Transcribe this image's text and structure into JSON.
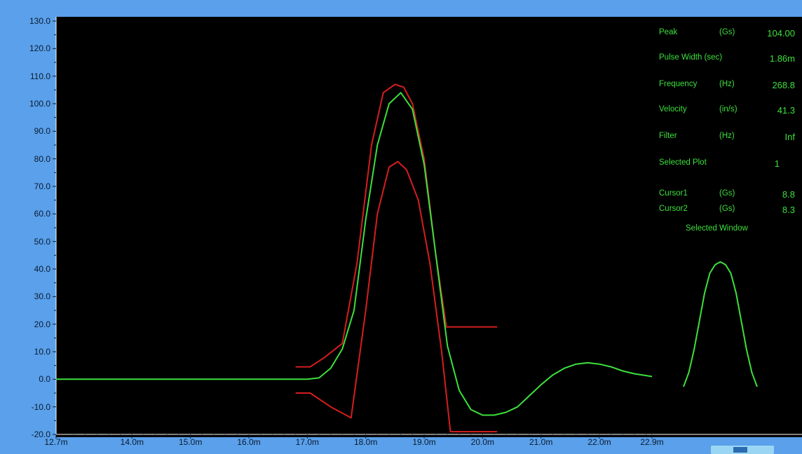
{
  "chart_data": {
    "type": "line",
    "title": "",
    "xlabel": "",
    "ylabel": "",
    "xlim": [
      12.7,
      22.9
    ],
    "ylim": [
      -20,
      130
    ],
    "grid": false,
    "y_ticks": [
      "130.0",
      "120.0",
      "110.0",
      "100.0",
      "90.0",
      "80.0",
      "70.0",
      "60.0",
      "50.0",
      "40.0",
      "30.0",
      "20.0",
      "10.0",
      "0.0",
      "-10.0",
      "-20.0"
    ],
    "x_ticks": [
      "12.7m",
      "14.0m",
      "15.0m",
      "16.0m",
      "17.0m",
      "18.0m",
      "19.0m",
      "20.0m",
      "21.0m",
      "22.0m",
      "22.9m"
    ],
    "x_tick_values": [
      12.7,
      14.0,
      15.0,
      16.0,
      17.0,
      18.0,
      19.0,
      20.0,
      21.0,
      22.0,
      22.9
    ],
    "series": [
      {
        "color": "#3ce03c",
        "x": [
          12.7,
          13.5,
          14.5,
          15.5,
          16.5,
          17.0,
          17.2,
          17.4,
          17.6,
          17.8,
          18.0,
          18.2,
          18.4,
          18.6,
          18.8,
          19.0,
          19.2,
          19.4,
          19.6,
          19.8,
          20.0,
          20.2,
          20.4,
          20.6,
          20.8,
          21.0,
          21.2,
          21.4,
          21.6,
          21.8,
          22.0,
          22.2,
          22.4,
          22.6,
          22.9
        ],
        "y": [
          0,
          0,
          0,
          0,
          0,
          0,
          0.5,
          4,
          11,
          25,
          58,
          85,
          100,
          104,
          98,
          78,
          45,
          12,
          -4,
          -11,
          -13,
          -13,
          -12,
          -10,
          -6,
          -2,
          1.5,
          4,
          5.5,
          6,
          5.5,
          4.5,
          3,
          2,
          1
        ]
      },
      {
        "color": "#d41e1e",
        "x": [
          16.8,
          17.05,
          17.3,
          17.6,
          17.85,
          18.1,
          18.3,
          18.5,
          18.65,
          18.8,
          19.0,
          19.2,
          19.38,
          19.48,
          20.25
        ],
        "y": [
          4.5,
          4.5,
          8,
          13,
          42,
          85,
          104,
          107,
          106,
          100,
          80,
          45,
          19,
          19,
          19
        ]
      },
      {
        "color": "#d41e1e",
        "x": [
          16.8,
          17.05,
          17.4,
          17.75,
          18.0,
          18.2,
          18.4,
          18.55,
          18.7,
          18.9,
          19.1,
          19.3,
          19.45,
          20.25
        ],
        "y": [
          -5,
          -5,
          -10,
          -14,
          25,
          60,
          77,
          79,
          76,
          65,
          42,
          10,
          -19,
          -19
        ]
      }
    ],
    "inset": {
      "color": "#3ce03c",
      "x": [
        0,
        1,
        2,
        3,
        4,
        5,
        6,
        7,
        8,
        9,
        10,
        11,
        12,
        13,
        14,
        15,
        16
      ],
      "y": [
        -3,
        2,
        10,
        20,
        30,
        37,
        40,
        41,
        40,
        37,
        30,
        20,
        10,
        2,
        -3,
        -3,
        -3
      ]
    }
  },
  "readout": {
    "peak": {
      "name": "Peak",
      "unit": "(Gs)",
      "value": "104.00"
    },
    "pulse_width": {
      "name": "Pulse Width (sec)",
      "unit": "",
      "value": "1.86m"
    },
    "frequency": {
      "name": "Frequency",
      "unit": "(Hz)",
      "value": "268.8"
    },
    "velocity": {
      "name": "Velocity",
      "unit": "(in/s)",
      "value": "41.3"
    },
    "filter": {
      "name": "Filter",
      "unit": "(Hz)",
      "value": "Inf"
    },
    "selected_plot": {
      "name": "Selected Plot",
      "unit": "",
      "value": "1"
    },
    "cursor1": {
      "name": "Cursor1",
      "unit": "(Gs)",
      "value": "8.8"
    },
    "cursor2": {
      "name": "Cursor2",
      "unit": "(Gs)",
      "value": "8.3"
    },
    "selected_window": "Selected Window"
  }
}
